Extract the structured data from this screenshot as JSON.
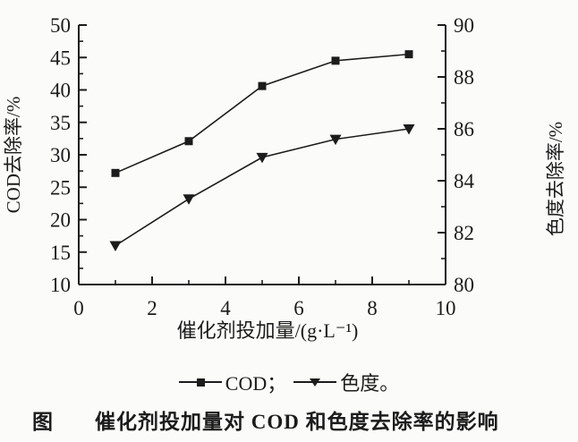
{
  "figure": {
    "background": "#fbfbf9",
    "ink": "#1c1c1c"
  },
  "chart_data": {
    "type": "line",
    "x": [
      1,
      3,
      5,
      7,
      9
    ],
    "series": [
      {
        "name": "COD",
        "axis": "left",
        "marker": "square",
        "values": [
          27.2,
          32.1,
          40.6,
          44.5,
          45.5
        ]
      },
      {
        "name": "色度",
        "axis": "right",
        "marker": "triangle-down",
        "values": [
          81.5,
          83.3,
          84.9,
          85.6,
          86.0
        ]
      }
    ],
    "x_axis": {
      "label": "催化剂投加量/(g·L⁻¹)",
      "min": 0,
      "max": 10,
      "major_step": 2,
      "minor_step": 1,
      "ticks": [
        0,
        2,
        4,
        6,
        8,
        10
      ]
    },
    "left_axis": {
      "label": "COD去除率/%",
      "min": 10,
      "max": 50,
      "major_step": 5,
      "minor_step": 2.5,
      "ticks": [
        10,
        15,
        20,
        25,
        30,
        35,
        40,
        45,
        50
      ]
    },
    "right_axis": {
      "label": "色度去除率/%",
      "min": 80,
      "max": 90,
      "major_step": 2,
      "minor_step": 1,
      "ticks": [
        80,
        82,
        84,
        86,
        88,
        90
      ]
    },
    "grid": false,
    "legend_position": "below",
    "title": "催化剂投加量对 COD 和色度去除率的影响"
  },
  "legend": {
    "items": [
      {
        "label": "COD；",
        "marker": "square"
      },
      {
        "label": "色度。",
        "marker": "triangle-down"
      }
    ]
  },
  "caption": {
    "prefix": "图",
    "text": "催化剂投加量对 COD 和色度去除率的影响"
  }
}
